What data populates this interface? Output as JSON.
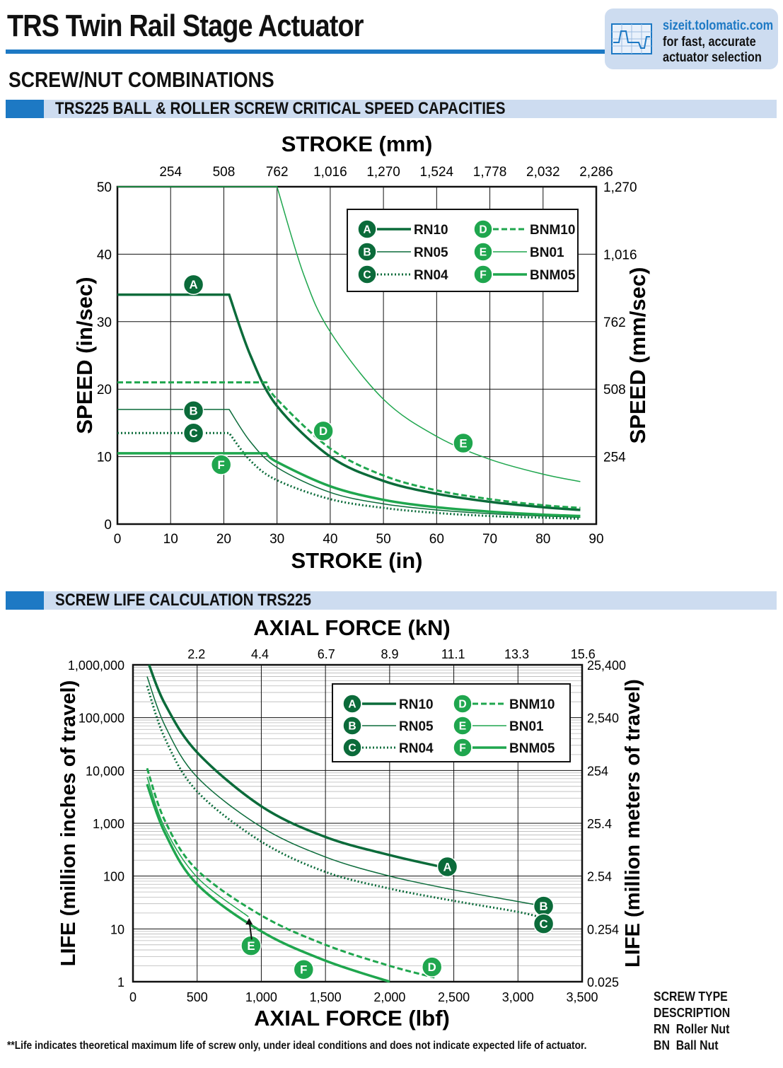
{
  "title": "TRS Twin Rail Stage Actuator",
  "badge": {
    "url": "sizeit.tolomatic.com",
    "line1": "for fast, accurate",
    "line2": "actuator selection"
  },
  "section_title": "SCREW/NUT COMBINATIONS",
  "bar1": "TRS225 BALL & ROLLER SCREW CRITICAL SPEED CAPACITIES",
  "bar2": "SCREW LIFE CALCULATION TRS225",
  "colors": {
    "dark": "#0b6b3a",
    "light": "#1fa64e",
    "blue": "#1d79c4",
    "bar": "#cddcf0"
  },
  "legend": [
    {
      "letter": "A",
      "label": "RN10",
      "style": "dark-thick"
    },
    {
      "letter": "B",
      "label": "RN05",
      "style": "dark-thin"
    },
    {
      "letter": "C",
      "label": "RN04",
      "style": "dark-dotted"
    },
    {
      "letter": "D",
      "label": "BNM10",
      "style": "light-dashed"
    },
    {
      "letter": "E",
      "label": "BN01",
      "style": "light-thin"
    },
    {
      "letter": "F",
      "label": "BNM05",
      "style": "light-thick"
    }
  ],
  "chart_data": [
    {
      "type": "line",
      "title": "TRS225 BALL & ROLLER SCREW CRITICAL SPEED CAPACITIES",
      "xlabel": "STROKE (in)",
      "x2label": "STROKE (mm)",
      "ylabel": "SPEED (in/sec)",
      "y2label": "SPEED (mm/sec)",
      "xlim": [
        0,
        90
      ],
      "ylim": [
        0,
        50
      ],
      "xticks": [
        "0",
        "10",
        "20",
        "30",
        "40",
        "50",
        "60",
        "70",
        "80",
        "90"
      ],
      "x2ticks": [
        "254",
        "508",
        "762",
        "1,016",
        "1,270",
        "1,524",
        "1,778",
        "2,032",
        "2,286"
      ],
      "yticks": [
        "0",
        "10",
        "20",
        "30",
        "40",
        "50"
      ],
      "y2ticks": [
        "254",
        "508",
        "762",
        "1,016",
        "1,270"
      ],
      "grid": true,
      "legend_position": "top-right",
      "series": [
        {
          "letter": "A",
          "name": "RN10",
          "x": [
            0,
            21,
            25,
            30,
            40,
            50,
            60,
            70,
            80,
            87
          ],
          "y": [
            34,
            34,
            25,
            17.5,
            10,
            6.4,
            4.5,
            3.3,
            2.5,
            2.1
          ]
        },
        {
          "letter": "B",
          "name": "RN05",
          "x": [
            0,
            21,
            25,
            30,
            40,
            50,
            60,
            70,
            80,
            87
          ],
          "y": [
            17,
            17,
            12.2,
            8.4,
            4.7,
            3.0,
            2.1,
            1.55,
            1.2,
            1.0
          ]
        },
        {
          "letter": "C",
          "name": "RN04",
          "x": [
            0,
            21,
            25,
            30,
            40,
            50,
            60,
            70,
            80,
            87
          ],
          "y": [
            13.5,
            13.5,
            9.4,
            6.5,
            3.7,
            2.4,
            1.65,
            1.2,
            0.95,
            0.8
          ]
        },
        {
          "letter": "D",
          "name": "BNM10",
          "x": [
            0,
            28,
            30,
            40,
            50,
            60,
            70,
            80,
            87
          ],
          "y": [
            21,
            21,
            18.5,
            11.2,
            7.2,
            5.0,
            3.7,
            2.8,
            2.4
          ]
        },
        {
          "letter": "E",
          "name": "BN01",
          "x": [
            0,
            30,
            35,
            40,
            50,
            60,
            70,
            80,
            87
          ],
          "y": [
            50,
            50,
            37,
            28.5,
            18.5,
            13,
            9.6,
            7.4,
            6.3
          ]
        },
        {
          "letter": "F",
          "name": "BNM05",
          "x": [
            0,
            28,
            30,
            40,
            50,
            60,
            70,
            80,
            87
          ],
          "y": [
            10.5,
            10.5,
            9.2,
            5.6,
            3.6,
            2.5,
            1.85,
            1.4,
            1.2
          ]
        }
      ]
    },
    {
      "type": "line",
      "title": "SCREW LIFE CALCULATION TRS225",
      "xlabel": "AXIAL FORCE (lbf)",
      "x2label": "AXIAL FORCE (kN)",
      "ylabel": "LIFE (million inches of travel)",
      "y2label": "LIFE (million meters of travel)",
      "xlim": [
        0,
        3500
      ],
      "ylim": [
        1,
        1000000
      ],
      "yscale": "log",
      "xticks": [
        "0",
        "500",
        "1,000",
        "1,500",
        "2,000",
        "2,500",
        "3,000",
        "3,500"
      ],
      "x2ticks": [
        "2.2",
        "4.4",
        "6.7",
        "8.9",
        "11.1",
        "13.3",
        "15.6"
      ],
      "yticks": [
        "1",
        "10",
        "100",
        "1,000",
        "10,000",
        "100,000",
        "1,000,000"
      ],
      "y2ticks": [
        "0.025",
        "0.254",
        "2.54",
        "25.4",
        "254",
        "2,540",
        "25,400"
      ],
      "grid": true,
      "legend_position": "top-right",
      "series": [
        {
          "letter": "A",
          "name": "RN10",
          "x": [
            125,
            250,
            500,
            1000,
            1500,
            2000,
            2400
          ],
          "y": [
            1000000,
            180000,
            22000,
            2100,
            550,
            250,
            150
          ]
        },
        {
          "letter": "B",
          "name": "RN05",
          "x": [
            110,
            250,
            500,
            1000,
            1500,
            2000,
            2500,
            3000,
            3200
          ],
          "y": [
            600000,
            70000,
            7500,
            850,
            230,
            100,
            55,
            33,
            27
          ]
        },
        {
          "letter": "C",
          "name": "RN04",
          "x": [
            110,
            250,
            500,
            1000,
            1500,
            2000,
            2500,
            3000,
            3200
          ],
          "y": [
            400000,
            40000,
            4000,
            450,
            120,
            58,
            34,
            21,
            16
          ]
        },
        {
          "letter": "D",
          "name": "BNM10",
          "x": [
            110,
            250,
            500,
            1000,
            1500,
            2000,
            2350
          ],
          "y": [
            11000,
            1100,
            130,
            18,
            5,
            2,
            1.2
          ]
        },
        {
          "letter": "E",
          "name": "BN01",
          "x": [
            110,
            250,
            500,
            900
          ],
          "y": [
            7500,
            800,
            95,
            17
          ]
        },
        {
          "letter": "F",
          "name": "BNM05",
          "x": [
            110,
            250,
            500,
            1000,
            1500,
            2000
          ],
          "y": [
            5500,
            650,
            70,
            9,
            2.5,
            1
          ]
        }
      ]
    }
  ],
  "footnote": "**Life indicates theoretical maximum life of screw only, under ideal conditions and does not indicate expected life of actuator.",
  "screw_type": {
    "line1": "SCREW TYPE",
    "line2": "DESCRIPTION",
    "rn_code": "RN",
    "rn_desc": "Roller Nut",
    "bn_code": "BN",
    "bn_desc": "Ball Nut"
  }
}
